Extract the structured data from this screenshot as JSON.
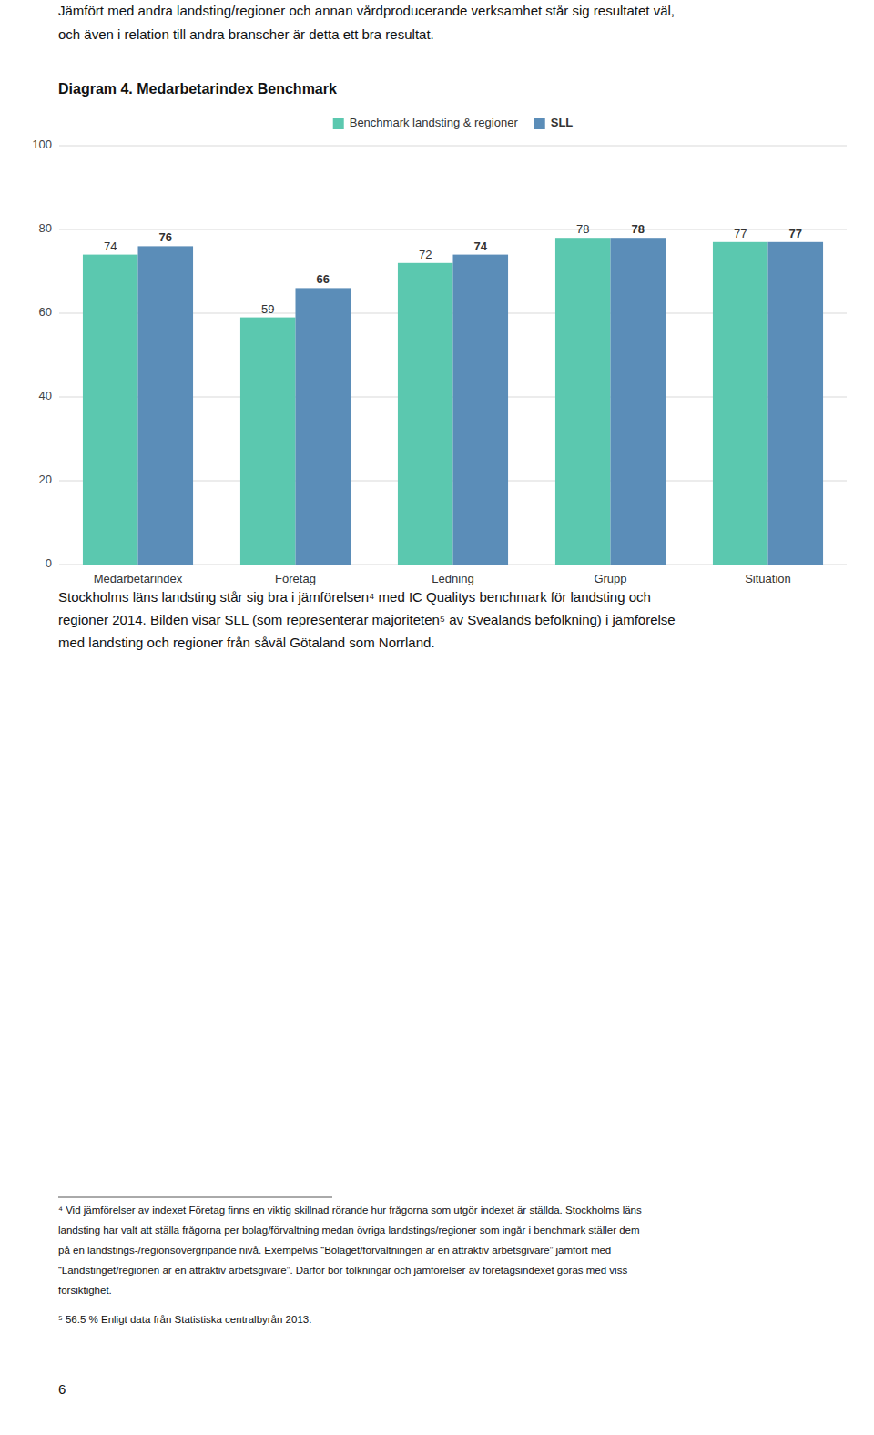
{
  "chart_data": {
    "type": "bar",
    "title": "Diagram 4. Medarbetarindex Benchmark",
    "categories": [
      "Medarbetarindex",
      "Företag",
      "Ledning",
      "Grupp",
      "Situation"
    ],
    "series": [
      {
        "name": "Benchmark landsting & regioner",
        "color": "#5BC8AF",
        "values": [
          74,
          59,
          72,
          78,
          77
        ]
      },
      {
        "name": "SLL",
        "color": "#5B8DB8",
        "values": [
          76,
          66,
          74,
          78,
          77
        ]
      }
    ],
    "ylim": [
      0,
      100
    ],
    "yticks": [
      0,
      20,
      40,
      60,
      80,
      100
    ],
    "grid": true,
    "legend": "top",
    "data_labels": true
  },
  "intro_text": [
    "Jämfört med andra landsting/regioner och annan vårdproducerande verksamhet står sig resultatet väl,",
    "och även i relation till andra branscher är detta ett bra resultat."
  ],
  "body_text": [
    "Stockholms läns landsting står sig bra i jämförelsen⁴ med IC Qualitys benchmark för landsting och",
    "regioner 2014. Bilden visar SLL (som representerar majoriteten⁵ av Svealands befolkning) i jämförelse",
    "med landsting och regioner från såväl Götaland som Norrland."
  ],
  "footnote4": [
    "⁴ Vid jämförelser av indexet Företag finns en viktig skillnad rörande hur frågorna som utgör indexet är ställda. Stockholms läns",
    "landsting har valt att ställa frågorna per bolag/förvaltning medan övriga landstings/regioner som ingår i benchmark ställer dem",
    "på en landstings-/regionsövergripande nivå. Exempelvis “Bolaget/förvaltningen är en attraktiv arbetsgivare” jämfört med",
    "“Landstinget/regionen är en attraktiv arbetsgivare”. Därför bör tolkningar och jämförelser av företagsindexet göras med viss",
    "försiktighet."
  ],
  "footnote5": "⁵ 56.5 % Enligt data från Statistiska centralbyrån 2013.",
  "page_number": "6"
}
